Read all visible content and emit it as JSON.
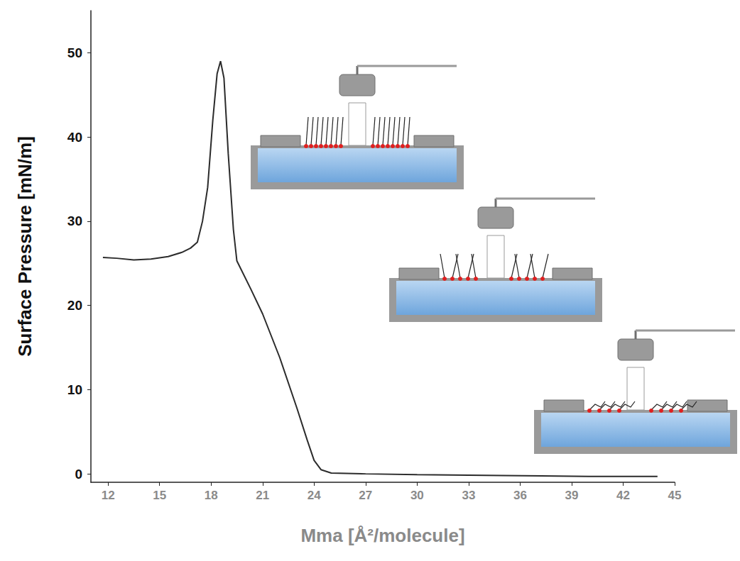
{
  "chart_data": {
    "type": "line",
    "x_label": "Mma [Å²/molecule]",
    "y_label": "Surface Pressure [mN/m]",
    "x": [
      11.7,
      12.5,
      13.5,
      14.5,
      15.5,
      16.3,
      16.8,
      17.2,
      17.5,
      17.8,
      18.1,
      18.35,
      18.55,
      18.75,
      19.0,
      19.3,
      19.5,
      20.3,
      21,
      22,
      23,
      23.6,
      24,
      24.4,
      25,
      27,
      30,
      35,
      40,
      44
    ],
    "values": [
      25.7,
      25.6,
      25.4,
      25.5,
      25.8,
      26.3,
      26.8,
      27.5,
      30,
      34,
      42,
      47.5,
      49,
      47,
      38,
      29,
      25.3,
      22,
      19,
      13.8,
      7.8,
      4,
      1.6,
      0.5,
      0.1,
      0,
      -0.1,
      -0.2,
      -0.3,
      -0.3
    ],
    "color": "#2b2b2b",
    "xlim": [
      11,
      45
    ],
    "xticks": [
      12,
      15,
      18,
      21,
      24,
      27,
      30,
      33,
      36,
      39,
      42,
      45
    ],
    "ylim": [
      -1,
      55
    ],
    "yticks": [
      0,
      10,
      20,
      30,
      40,
      50
    ],
    "grid": false,
    "marker": "none",
    "line_style": "solid"
  }
}
